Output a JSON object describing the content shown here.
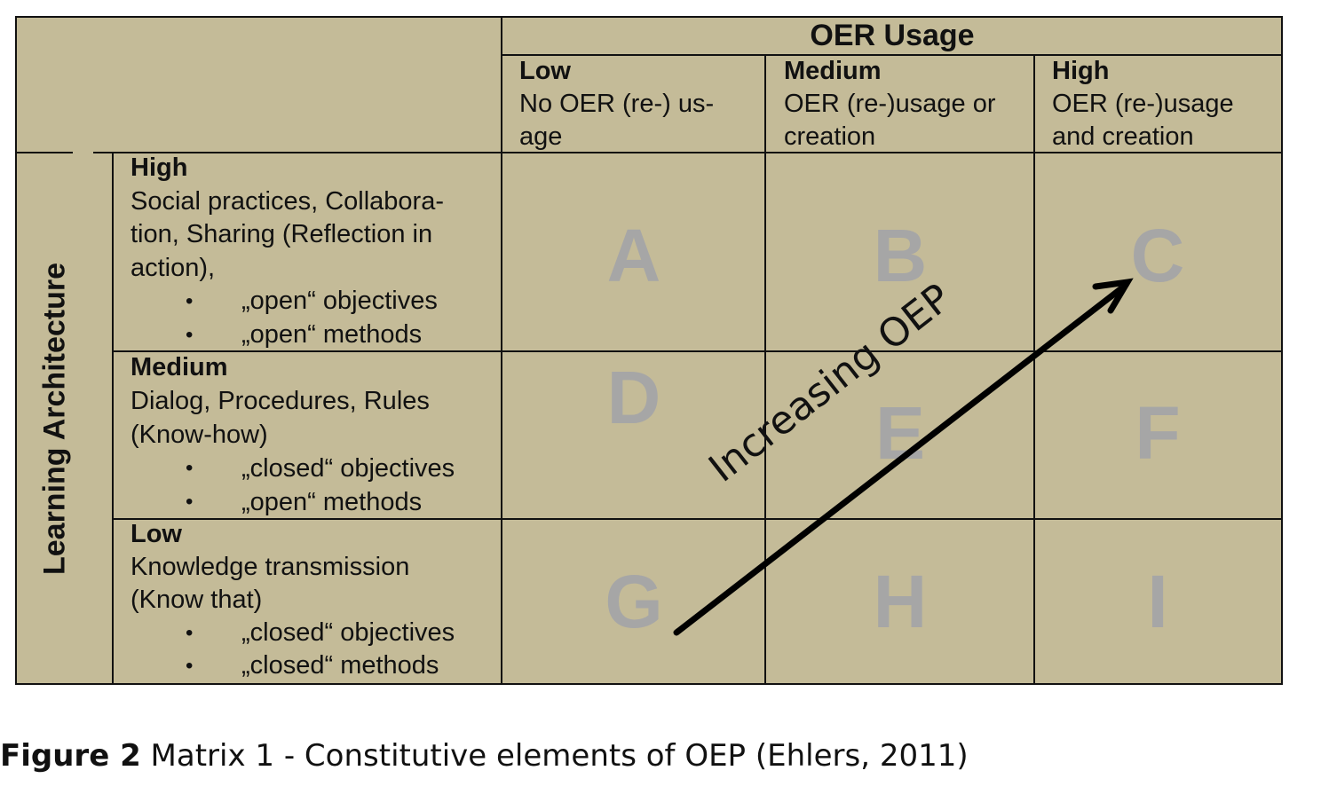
{
  "matrix": {
    "col_axis_title": "OER Usage",
    "row_axis_title": "Learning Architecture",
    "columns": [
      {
        "level": "Low",
        "desc": "No OER (re-) us-age"
      },
      {
        "level": "Medium",
        "desc": "OER (re-)usage or creation"
      },
      {
        "level": "High",
        "desc": "OER (re-)usage and creation"
      }
    ],
    "rows": [
      {
        "level": "High",
        "desc": "Social practices, Collabora-tion, Sharing (Reflection in action),",
        "bullets": [
          "„open“ objectives",
          "„open“ methods"
        ]
      },
      {
        "level": "Medium",
        "desc": "Dialog, Procedures, Rules (Know-how)",
        "bullets": [
          "„closed“ objectives",
          "„open“ methods"
        ]
      },
      {
        "level": "Low",
        "desc": "Knowledge transmission (Know that)",
        "bullets": [
          "„closed“ objectives",
          "„closed“ methods"
        ]
      }
    ],
    "cells": [
      "A",
      "B",
      "C",
      "D",
      "E",
      "F",
      "G",
      "H",
      "I"
    ],
    "arrow_label": "Increasing OEP",
    "colors": {
      "background": "#c4bb98",
      "cell_letters": "#a6a6a6",
      "lines": "#111111"
    }
  },
  "caption": {
    "label": "Figure 2",
    "text": " Matrix 1 - Constitutive elements of OEP (Ehlers, 2011)"
  }
}
